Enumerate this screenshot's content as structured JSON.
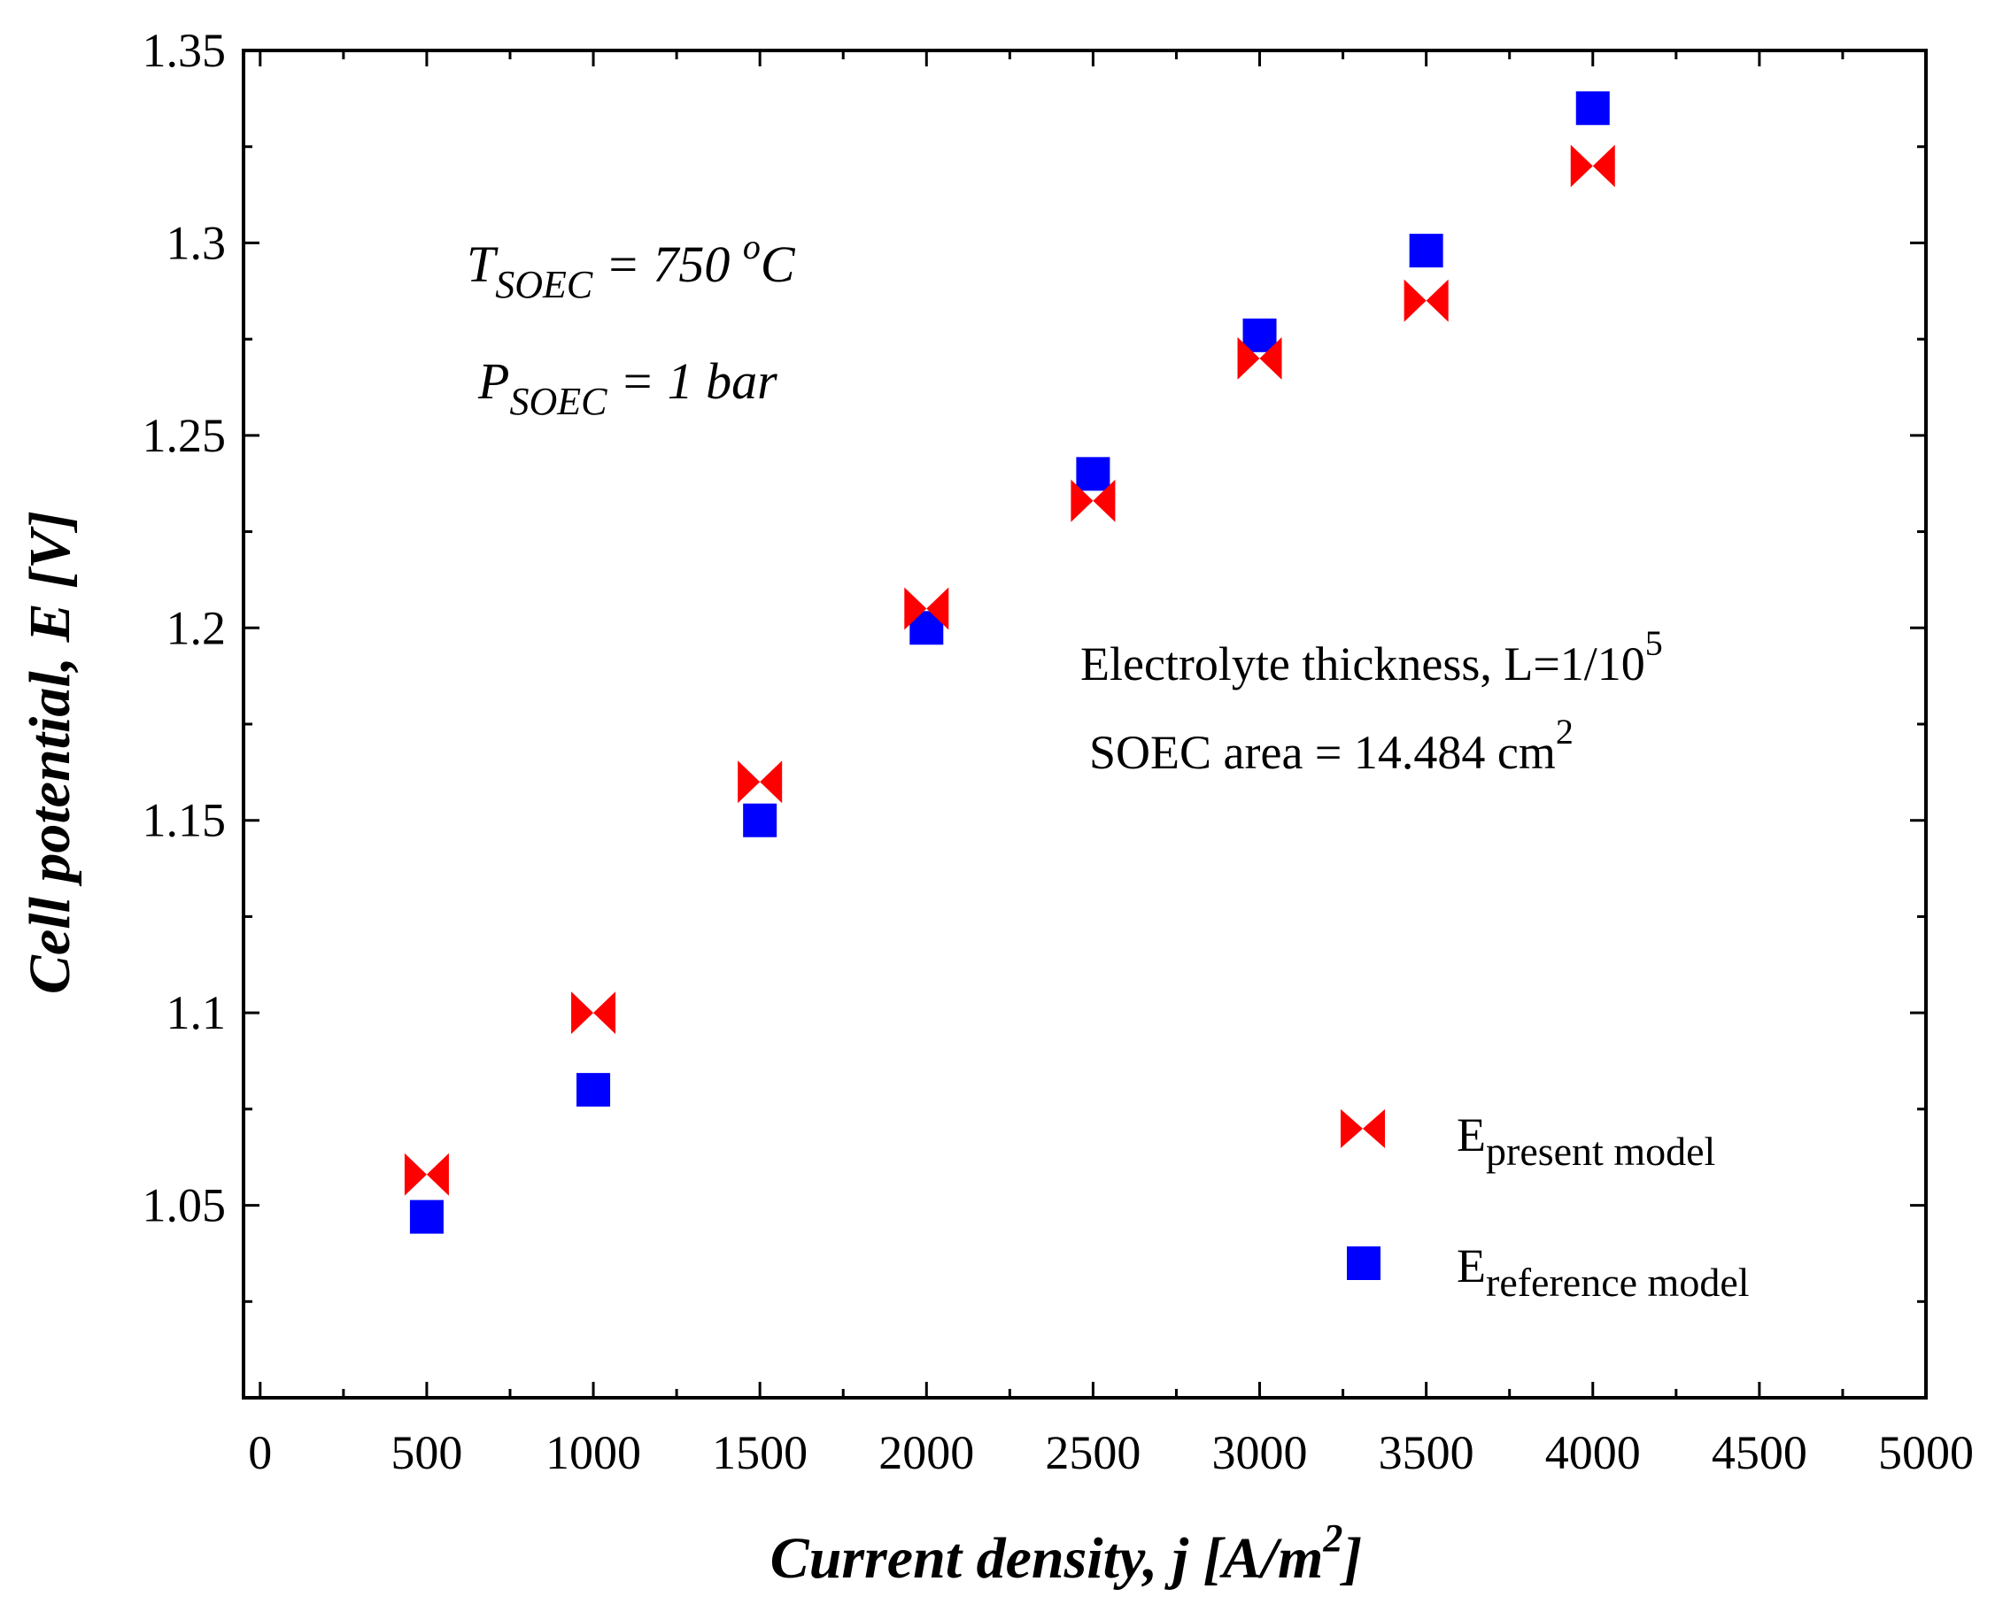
{
  "colors": {
    "present": "#ff0000",
    "reference": "#0000ff",
    "axis": "#000000"
  },
  "chart_data": {
    "type": "scatter",
    "xlabel": {
      "main": "Current density, j [A/m",
      "sup": "2",
      "tail": "]"
    },
    "ylabel": "Cell potential, E [V]",
    "xlim": [
      -50,
      5000
    ],
    "ylim": [
      1.0,
      1.35
    ],
    "xticks": [
      0,
      500,
      1000,
      1500,
      2000,
      2500,
      3000,
      3500,
      4000,
      4500,
      5000
    ],
    "xtick_labels": [
      "0",
      "500",
      "1000",
      "1500",
      "2000",
      "2500",
      "3000",
      "3500",
      "4000",
      "4500",
      "5000"
    ],
    "yticks": [
      1.05,
      1.1,
      1.15,
      1.2,
      1.25,
      1.3,
      1.35
    ],
    "ytick_labels": [
      "1.05",
      "1.1",
      "1.15",
      "1.2",
      "1.25",
      "1.3",
      "1.35"
    ],
    "x": [
      500,
      1000,
      1500,
      2000,
      2500,
      3000,
      3500,
      4000
    ],
    "series": [
      {
        "name": "E present model",
        "label_main": "E",
        "label_sub": "present model",
        "marker": "bowtie",
        "values": [
          1.058,
          1.1,
          1.16,
          1.205,
          1.233,
          1.27,
          1.285,
          1.32
        ]
      },
      {
        "name": "E reference model",
        "label_main": "E",
        "label_sub": "reference model",
        "marker": "square",
        "values": [
          1.047,
          1.08,
          1.15,
          1.2,
          1.24,
          1.276,
          1.298,
          1.335
        ]
      }
    ],
    "annotations": {
      "temp": {
        "var": "T",
        "sub": "SOEC",
        "eq": " = 750 ",
        "sup": "o",
        "unit": "C"
      },
      "pressure": {
        "var": "P",
        "sub": "SOEC",
        "eq": " = 1 bar"
      },
      "thickness": {
        "text": "Electrolyte thickness, L=1/10",
        "sup": "5"
      },
      "area": {
        "text": "SOEC area = 14.484 cm",
        "sup": "2"
      }
    }
  }
}
